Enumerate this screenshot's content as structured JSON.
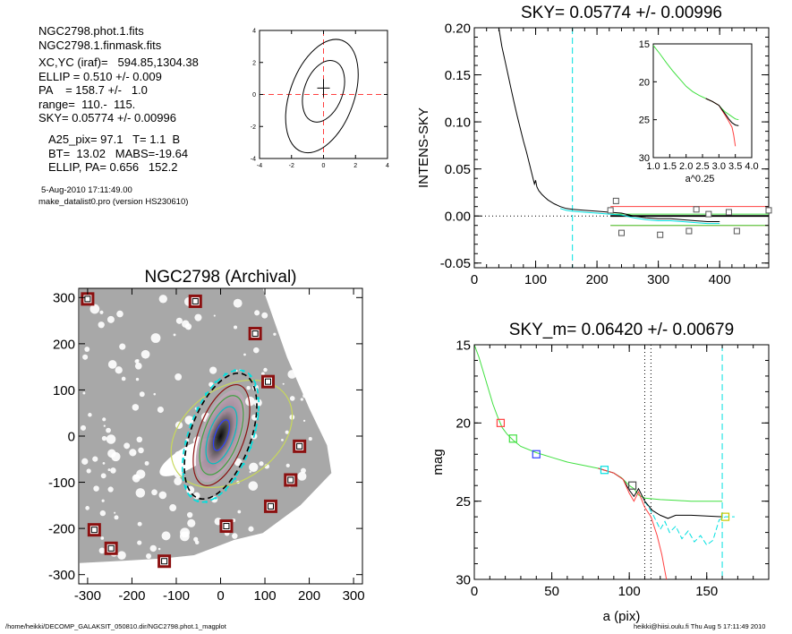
{
  "info": {
    "lines_a": [
      "NGC2798.phot.1.fits",
      "NGC2798.1.finmask.fits"
    ],
    "lines_b": [
      "XC,YC (iraf)=   594.85,1304.38",
      "ELLIP = 0.510 +/- 0.009",
      "PA    = 158.7 +/-   1.0",
      "range=  110.-  115.",
      "SKY= 0.05774 +/- 0.00996"
    ],
    "lines_c": [
      "A25_pix= 97.1   T= 1.1  B",
      "BT=  13.02   MABS=-19.64",
      "ELLIP, PA= 0.656   152.2"
    ],
    "lines_d": [
      "5-Aug-2010 17:11:49.00",
      "make_datalist0.pro (version HS230610)"
    ]
  },
  "footer": {
    "left": "/home/heikki/DECOMP_GALAKSIT_050810.dir/NGC2798.phot.1_magplot",
    "right": "heikki@hiisi.oulu.fi  Thu Aug  5 17:11:49 2010"
  },
  "colors": {
    "sky_line": "#00e0e0",
    "red": "#ff4040",
    "green": "#40e040",
    "blue": "#3040ff",
    "dark_red": "#8b1010",
    "grey_image": "#a8a8a8"
  },
  "chart_data": [
    {
      "id": "contour",
      "type": "scatter",
      "title": "",
      "xlim": [
        -4,
        4
      ],
      "ylim": [
        -4,
        4
      ],
      "xticks": [
        -4,
        -2,
        0,
        2,
        4
      ],
      "yticks": [
        -4,
        -2,
        0,
        2,
        4
      ],
      "center": [
        0,
        0.4
      ],
      "ellipses": [
        {
          "cx": -0.1,
          "cy": -0.1,
          "rx": 2.0,
          "ry": 3.7,
          "rot": 20
        },
        {
          "cx": 0.0,
          "cy": 0.2,
          "rx": 1.2,
          "ry": 2.0,
          "rot": 20
        }
      ]
    },
    {
      "id": "sky",
      "type": "line",
      "title": "SKY= 0.05774 +/- 0.00996",
      "xlabel": "",
      "ylabel": "INTENS-SKY",
      "xlim": [
        0,
        480
      ],
      "ylim": [
        -0.055,
        0.2
      ],
      "xticks": [
        0,
        100,
        200,
        300,
        400
      ],
      "yticks": [
        -0.05,
        0.0,
        0.05,
        0.1,
        0.15,
        0.2
      ],
      "ytick_labels": [
        "-0.05",
        "0.00",
        "0.05",
        "0.10",
        "0.15",
        "0.20"
      ],
      "vline": 160,
      "profile": [
        [
          40,
          0.2
        ],
        [
          45,
          0.18
        ],
        [
          50,
          0.165
        ],
        [
          55,
          0.15
        ],
        [
          60,
          0.135
        ],
        [
          65,
          0.12
        ],
        [
          70,
          0.106
        ],
        [
          75,
          0.093
        ],
        [
          80,
          0.08
        ],
        [
          85,
          0.068
        ],
        [
          90,
          0.055
        ],
        [
          95,
          0.042
        ],
        [
          98,
          0.034
        ],
        [
          100,
          0.038
        ],
        [
          102,
          0.031
        ],
        [
          105,
          0.027
        ],
        [
          110,
          0.023
        ],
        [
          115,
          0.02
        ],
        [
          120,
          0.017
        ],
        [
          130,
          0.013
        ],
        [
          140,
          0.01
        ],
        [
          150,
          0.008
        ],
        [
          160,
          0.007
        ],
        [
          180,
          0.006
        ],
        [
          200,
          0.005
        ],
        [
          220,
          0.004
        ],
        [
          240,
          0.003
        ],
        [
          260,
          0.0
        ],
        [
          280,
          -0.002
        ],
        [
          300,
          -0.003
        ],
        [
          320,
          -0.003
        ],
        [
          340,
          -0.004
        ],
        [
          360,
          -0.005
        ],
        [
          380,
          -0.006
        ],
        [
          400,
          -0.006
        ]
      ],
      "sky_points": [
        [
          222,
          0.006
        ],
        [
          231,
          0.016
        ],
        [
          240,
          -0.018
        ],
        [
          303,
          -0.02
        ],
        [
          350,
          -0.016
        ],
        [
          362,
          0.007
        ],
        [
          382,
          0.002
        ],
        [
          415,
          0.004
        ],
        [
          428,
          -0.016
        ],
        [
          480,
          0.006
        ]
      ],
      "red_lines": [
        0.01,
        -0.01
      ],
      "green_lines": [
        0.002,
        -0.01
      ],
      "black_line": 0.0,
      "inset": {
        "xlabel": "a^0.25",
        "xlim": [
          1.0,
          4.0
        ],
        "ylim": [
          30,
          15
        ],
        "xticks": [
          1.0,
          1.5,
          2.0,
          2.5,
          3.0,
          3.5,
          4.0
        ],
        "xtick_labels": [
          "1.0",
          "1.5",
          "2.0",
          "2.5",
          "3.0",
          "3.5",
          "4.0"
        ],
        "yticks": [
          15,
          20,
          25,
          30
        ],
        "green": [
          [
            1.0,
            15.2
          ],
          [
            1.2,
            16.3
          ],
          [
            1.4,
            17.5
          ],
          [
            1.6,
            18.6
          ],
          [
            1.8,
            19.6
          ],
          [
            2.0,
            20.6
          ],
          [
            2.2,
            21.3
          ],
          [
            2.4,
            21.8
          ],
          [
            2.6,
            22.2
          ],
          [
            2.8,
            22.6
          ],
          [
            3.0,
            23.1
          ],
          [
            3.1,
            23.6
          ],
          [
            3.2,
            24.0
          ],
          [
            3.3,
            24.3
          ],
          [
            3.4,
            24.6
          ],
          [
            3.5,
            24.9
          ],
          [
            3.6,
            25.0
          ]
        ],
        "black": [
          [
            2.6,
            22.2
          ],
          [
            2.8,
            22.6
          ],
          [
            3.0,
            23.1
          ],
          [
            3.1,
            23.7
          ],
          [
            3.2,
            24.3
          ],
          [
            3.3,
            24.9
          ],
          [
            3.4,
            25.4
          ],
          [
            3.5,
            25.7
          ],
          [
            3.6,
            25.8
          ]
        ],
        "red": [
          [
            2.6,
            22.2
          ],
          [
            2.8,
            22.6
          ],
          [
            3.0,
            23.1
          ],
          [
            3.1,
            23.8
          ],
          [
            3.2,
            24.5
          ],
          [
            3.3,
            25.2
          ],
          [
            3.4,
            26.0
          ],
          [
            3.45,
            27.0
          ],
          [
            3.5,
            28.5
          ]
        ]
      }
    },
    {
      "id": "image",
      "type": "scatter",
      "title": "NGC2798 (Archival)",
      "xlim": [
        -320,
        320
      ],
      "ylim": [
        -320,
        320
      ],
      "xticks": [
        -300,
        -200,
        -100,
        0,
        100,
        200,
        300
      ],
      "yticks": [
        -300,
        -200,
        -100,
        0,
        100,
        200,
        300
      ],
      "markers": [
        [
          -300,
          297
        ],
        [
          -57,
          292
        ],
        [
          78,
          222
        ],
        [
          107,
          118
        ],
        [
          178,
          -22
        ],
        [
          158,
          -95
        ],
        [
          113,
          -152
        ],
        [
          13,
          -195
        ],
        [
          -285,
          -203
        ],
        [
          -247,
          -243
        ],
        [
          -127,
          -271
        ]
      ],
      "ellipses": [
        {
          "name": "green-ellipse",
          "cx": 25,
          "cy": 5,
          "rx": 150,
          "ry": 100,
          "rot": -35,
          "color": "#c8d85a"
        },
        {
          "name": "outer-dashed",
          "cx": 0,
          "cy": 0,
          "rx": 72,
          "ry": 150,
          "rot": 20,
          "color": "#00e0e0",
          "dash": true
        },
        {
          "name": "black-dashed",
          "cx": 0,
          "cy": 0,
          "rx": 68,
          "ry": 143,
          "rot": 20,
          "color": "#000000",
          "dash": true
        },
        {
          "name": "dark-red",
          "cx": 2,
          "cy": 2,
          "rx": 52,
          "ry": 115,
          "rot": 20,
          "color": "#8b1010"
        },
        {
          "name": "green",
          "cx": 2,
          "cy": 2,
          "rx": 40,
          "ry": 90,
          "rot": 20,
          "color": "#40a040"
        },
        {
          "name": "cyan",
          "cx": 2,
          "cy": 2,
          "rx": 28,
          "ry": 65,
          "rot": 20,
          "color": "#00c0c0"
        },
        {
          "name": "blue",
          "cx": 2,
          "cy": 2,
          "rx": 14,
          "ry": 35,
          "rot": 20,
          "color": "#3040ff"
        }
      ]
    },
    {
      "id": "mag",
      "type": "line",
      "title": "SKY_m=  0.06420 +/- 0.00679",
      "xlabel": "a (pix)",
      "ylabel": "mag",
      "xlim": [
        0,
        190
      ],
      "ylim": [
        30,
        15
      ],
      "xticks": [
        0,
        50,
        100,
        150
      ],
      "yticks": [
        15,
        20,
        25,
        30
      ],
      "vlines_dotted": [
        110,
        114
      ],
      "vline_dashed": 160,
      "green": [
        [
          0,
          15.0
        ],
        [
          3,
          15.8
        ],
        [
          6,
          16.8
        ],
        [
          9,
          17.8
        ],
        [
          12,
          18.8
        ],
        [
          15,
          19.6
        ],
        [
          18,
          20.3
        ],
        [
          21,
          20.7
        ],
        [
          25,
          21.1
        ],
        [
          30,
          21.5
        ],
        [
          40,
          21.9
        ],
        [
          50,
          22.2
        ],
        [
          60,
          22.5
        ],
        [
          70,
          22.7
        ],
        [
          80,
          22.9
        ],
        [
          90,
          23.2
        ],
        [
          95,
          23.5
        ],
        [
          100,
          24.0
        ],
        [
          103,
          24.2
        ],
        [
          106,
          24.6
        ],
        [
          110,
          24.8
        ],
        [
          120,
          24.9
        ],
        [
          130,
          24.95
        ],
        [
          140,
          25.0
        ],
        [
          150,
          25.0
        ],
        [
          160,
          25.0
        ]
      ],
      "black": [
        [
          80,
          22.9
        ],
        [
          90,
          23.2
        ],
        [
          96,
          23.6
        ],
        [
          100,
          24.3
        ],
        [
          103,
          24.7
        ],
        [
          106,
          24.2
        ],
        [
          110,
          25.0
        ],
        [
          115,
          25.6
        ],
        [
          120,
          25.9
        ],
        [
          125,
          26.1
        ],
        [
          130,
          25.9
        ],
        [
          140,
          25.9
        ],
        [
          150,
          25.95
        ],
        [
          160,
          26.0
        ]
      ],
      "red": [
        [
          80,
          22.9
        ],
        [
          90,
          23.2
        ],
        [
          96,
          23.6
        ],
        [
          100,
          24.5
        ],
        [
          103,
          25.0
        ],
        [
          106,
          24.4
        ],
        [
          110,
          25.4
        ],
        [
          114,
          26.0
        ],
        [
          118,
          27.2
        ],
        [
          121,
          28.4
        ],
        [
          124,
          30.0
        ]
      ],
      "cyan": [
        [
          110,
          25.0
        ],
        [
          115,
          25.8
        ],
        [
          120,
          26.8
        ],
        [
          123,
          26.3
        ],
        [
          126,
          27.0
        ],
        [
          130,
          26.6
        ],
        [
          134,
          27.4
        ],
        [
          138,
          26.9
        ],
        [
          142,
          27.6
        ],
        [
          146,
          27.2
        ],
        [
          150,
          27.8
        ],
        [
          154,
          27.5
        ],
        [
          158,
          26.2
        ],
        [
          162,
          26.0
        ],
        [
          168,
          26.0
        ]
      ],
      "markers": [
        {
          "x": 17,
          "y": 20.0,
          "color": "#ff4040"
        },
        {
          "x": 25,
          "y": 21.0,
          "color": "#40e040"
        },
        {
          "x": 40,
          "y": 22.0,
          "color": "#3040ff"
        },
        {
          "x": 84,
          "y": 23.0,
          "color": "#00e0e0"
        },
        {
          "x": 102,
          "y": 24.0,
          "color": "#505050"
        },
        {
          "x": 162,
          "y": 26.0,
          "color": "#c8c800"
        }
      ]
    }
  ]
}
